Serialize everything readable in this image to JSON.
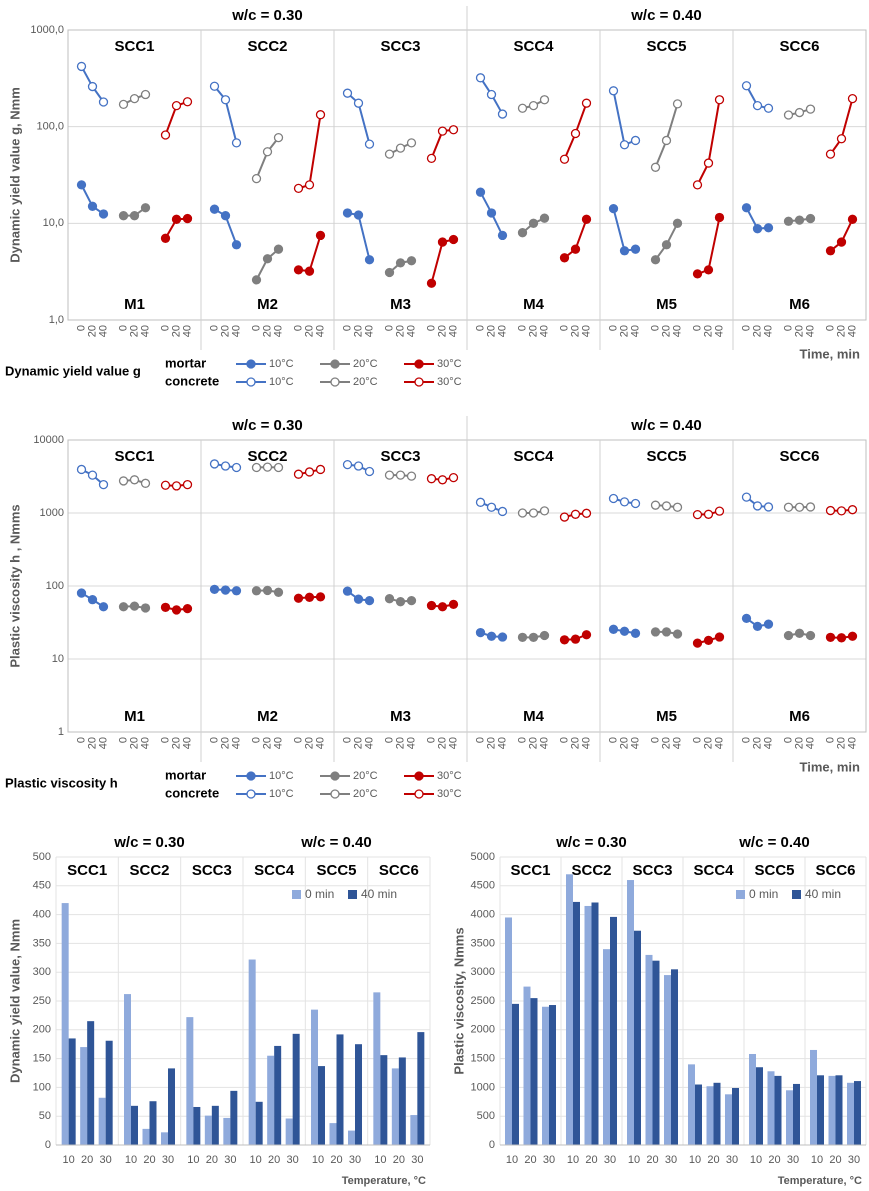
{
  "chart_data": [
    {
      "type": "line",
      "log": true,
      "groups": [
        "w/c = 0.30",
        "w/c = 0.40"
      ],
      "y_label": "Dynamic yield value g, Nmm",
      "x_label": "Time, min",
      "ylim": [
        1,
        1000
      ],
      "yticks": [
        {
          "value": 1,
          "label": "1,0"
        },
        {
          "value": 10,
          "label": "10,0"
        },
        {
          "value": 100,
          "label": "100,0"
        },
        {
          "value": 1000,
          "label": "1000,0"
        }
      ],
      "times": [
        0,
        20,
        40
      ],
      "temperatures": [
        "10°C",
        "20°C",
        "30°C"
      ],
      "colors": [
        "#4472c4",
        "#7f7f7f",
        "#c00000"
      ],
      "legend": {
        "title": "Dynamic yield value g",
        "rows": [
          "mortar",
          "concrete"
        ]
      },
      "panels": [
        {
          "top": "SCC1",
          "bottom": "M1",
          "values": [
            [
              [
                25,
                15,
                12.5
              ],
              [
                12,
                12,
                14.5
              ],
              [
                7,
                11,
                11.2
              ]
            ],
            [
              [
                420,
                260,
                180
              ],
              [
                170,
                195,
                215
              ],
              [
                82,
                165,
                181
              ]
            ]
          ]
        },
        {
          "top": "SCC2",
          "bottom": "M2",
          "values": [
            [
              [
                14,
                12,
                6
              ],
              [
                2.6,
                4.3,
                5.4
              ],
              [
                3.3,
                3.2,
                7.5
              ]
            ],
            [
              [
                262,
                190,
                68
              ],
              [
                29,
                55,
                77
              ],
              [
                23,
                25,
                133
              ]
            ]
          ]
        },
        {
          "top": "SCC3",
          "bottom": "M3",
          "values": [
            [
              [
                12.8,
                12.2,
                4.2
              ],
              [
                3.1,
                3.9,
                4.1
              ],
              [
                2.4,
                6.4,
                6.8
              ]
            ],
            [
              [
                222,
                175,
                66
              ],
              [
                52,
                60,
                68
              ],
              [
                47,
                90,
                93
              ]
            ]
          ]
        },
        {
          "top": "SCC4",
          "bottom": "M4",
          "values": [
            [
              [
                21,
                12.8,
                7.5
              ],
              [
                8,
                10,
                11.3
              ],
              [
                4.4,
                5.4,
                11
              ]
            ],
            [
              [
                320,
                215,
                135
              ],
              [
                155,
                165,
                190
              ],
              [
                46,
                85,
                175
              ]
            ]
          ]
        },
        {
          "top": "SCC5",
          "bottom": "M5",
          "values": [
            [
              [
                14.2,
                5.2,
                5.4
              ],
              [
                4.2,
                6,
                10
              ],
              [
                3,
                3.3,
                11.5
              ]
            ],
            [
              [
                235,
                65,
                72
              ],
              [
                38,
                72,
                172
              ],
              [
                25,
                42,
                190
              ]
            ]
          ]
        },
        {
          "top": "SCC6",
          "bottom": "M6",
          "values": [
            [
              [
                14.5,
                8.8,
                9
              ],
              [
                10.5,
                10.8,
                11.2
              ],
              [
                5.2,
                6.4,
                11
              ]
            ],
            [
              [
                265,
                165,
                155
              ],
              [
                132,
                140,
                152
              ],
              [
                52,
                75,
                195
              ]
            ]
          ]
        }
      ]
    },
    {
      "type": "line",
      "log": true,
      "groups": [
        "w/c = 0.30",
        "w/c = 0.40"
      ],
      "y_label": "Plastic viscosity h , Nmms",
      "x_label": "Time, min",
      "ylim": [
        1,
        10000
      ],
      "yticks": [
        1,
        10,
        100,
        1000,
        10000
      ],
      "times": [
        0,
        20,
        40
      ],
      "temperatures": [
        "10°C",
        "20°C",
        "30°C"
      ],
      "colors": [
        "#4472c4",
        "#7f7f7f",
        "#c00000"
      ],
      "legend": {
        "title": "Plastic viscosity h",
        "rows": [
          "mortar",
          "concrete"
        ]
      },
      "panels": [
        {
          "top": "SCC1",
          "bottom": "M1",
          "values": [
            [
              [
                80,
                65,
                52
              ],
              [
                52,
                53,
                50
              ],
              [
                51,
                47,
                49
              ]
            ],
            [
              [
                3950,
                3300,
                2450
              ],
              [
                2750,
                2850,
                2550
              ],
              [
                2400,
                2350,
                2450
              ]
            ]
          ]
        },
        {
          "top": "SCC2",
          "bottom": "M2",
          "values": [
            [
              [
                90,
                88,
                86
              ],
              [
                86,
                87,
                82
              ],
              [
                68,
                70,
                71
              ]
            ],
            [
              [
                4700,
                4400,
                4200
              ],
              [
                4200,
                4250,
                4200
              ],
              [
                3400,
                3650,
                3950
              ]
            ]
          ]
        },
        {
          "top": "SCC3",
          "bottom": "M3",
          "values": [
            [
              [
                85,
                66,
                63
              ],
              [
                67,
                61,
                63
              ],
              [
                54,
                52,
                56
              ]
            ],
            [
              [
                4600,
                4400,
                3700
              ],
              [
                3300,
                3300,
                3200
              ],
              [
                2950,
                2850,
                3050
              ]
            ]
          ]
        },
        {
          "top": "SCC4",
          "bottom": "M4",
          "values": [
            [
              [
                23,
                20.5,
                20
              ],
              [
                19.8,
                19.8,
                21
              ],
              [
                18.3,
                18.7,
                21.5
              ]
            ],
            [
              [
                1400,
                1200,
                1050
              ],
              [
                1000,
                1000,
                1070
              ],
              [
                880,
                960,
                990
              ]
            ]
          ]
        },
        {
          "top": "SCC5",
          "bottom": "M5",
          "values": [
            [
              [
                25.5,
                24,
                22.5
              ],
              [
                23.5,
                23.5,
                22
              ],
              [
                16.5,
                18,
                20
              ]
            ],
            [
              [
                1580,
                1420,
                1350
              ],
              [
                1280,
                1250,
                1200
              ],
              [
                950,
                960,
                1060
              ]
            ]
          ]
        },
        {
          "top": "SCC6",
          "bottom": "M6",
          "values": [
            [
              [
                36,
                28,
                30
              ],
              [
                21,
                22.5,
                21
              ],
              [
                19.8,
                19.5,
                20.5
              ]
            ],
            [
              [
                1650,
                1250,
                1210
              ],
              [
                1200,
                1200,
                1210
              ],
              [
                1080,
                1070,
                1110
              ]
            ]
          ]
        }
      ]
    },
    {
      "type": "bar",
      "groups": [
        "w/c = 0.30",
        "w/c = 0.40"
      ],
      "panels": [
        "SCC1",
        "SCC2",
        "SCC3",
        "SCC4",
        "SCC5",
        "SCC6"
      ],
      "categories": [
        "10",
        "20",
        "30"
      ],
      "y_label": "Dynamic yield value, Nmm",
      "x_label": "Temperature, °C",
      "ylim": [
        0,
        500
      ],
      "yticks": [
        0,
        50,
        100,
        150,
        200,
        250,
        300,
        350,
        400,
        450,
        500
      ],
      "series": [
        {
          "name": "0 min",
          "color": "#8faadc",
          "values": [
            [
              420,
              170,
              82
            ],
            [
              262,
              28,
              22
            ],
            [
              222,
              51,
              47
            ],
            [
              322,
              155,
              46
            ],
            [
              235,
              38,
              25
            ],
            [
              265,
              133,
              52
            ]
          ]
        },
        {
          "name": "40 min",
          "color": "#2f5597",
          "values": [
            [
              185,
              215,
              181
            ],
            [
              68,
              76,
              133
            ],
            [
              66,
              68,
              94
            ],
            [
              75,
              172,
              193
            ],
            [
              137,
              192,
              175
            ],
            [
              156,
              152,
              196
            ]
          ]
        }
      ]
    },
    {
      "type": "bar",
      "groups": [
        "w/c = 0.30",
        "w/c = 0.40"
      ],
      "panels": [
        "SCC1",
        "SCC2",
        "SCC3",
        "SCC4",
        "SCC5",
        "SCC6"
      ],
      "categories": [
        "10",
        "20",
        "30"
      ],
      "y_label": "Plastic viscosity, Nmms",
      "x_label": "Temperature, °C",
      "ylim": [
        0,
        5000
      ],
      "yticks": [
        0,
        500,
        1000,
        1500,
        2000,
        2500,
        3000,
        3500,
        4000,
        4500,
        5000
      ],
      "series": [
        {
          "name": "0 min",
          "color": "#8faadc",
          "values": [
            [
              3950,
              2750,
              2400
            ],
            [
              4700,
              4150,
              3400
            ],
            [
              4600,
              3300,
              2950
            ],
            [
              1400,
              1020,
              880
            ],
            [
              1580,
              1280,
              950
            ],
            [
              1650,
              1200,
              1080
            ]
          ]
        },
        {
          "name": "40 min",
          "color": "#2f5597",
          "values": [
            [
              2450,
              2550,
              2430
            ],
            [
              4220,
              4210,
              3960
            ],
            [
              3720,
              3200,
              3050
            ],
            [
              1050,
              1080,
              990
            ],
            [
              1350,
              1200,
              1060
            ],
            [
              1210,
              1210,
              1110
            ]
          ]
        }
      ]
    }
  ]
}
